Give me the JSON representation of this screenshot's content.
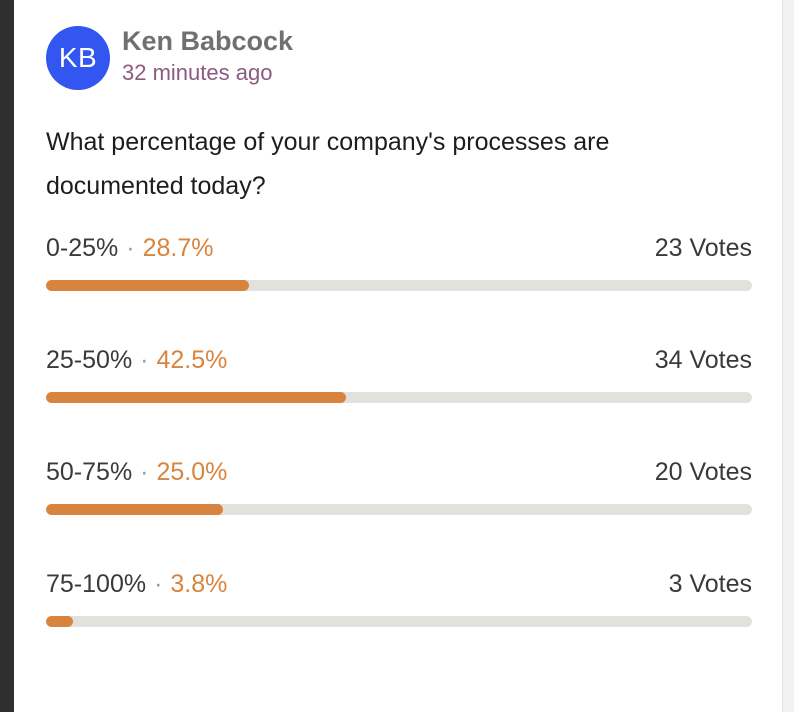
{
  "post": {
    "author": {
      "initials": "KB",
      "name": "Ken Babcock",
      "avatar_color": "#3355f0"
    },
    "timestamp": "32 minutes ago",
    "question": "What percentage of your company's processes are documented today?"
  },
  "poll": {
    "accent_color": "#d8843e",
    "separator": "·",
    "options": [
      {
        "label": "0-25%",
        "percent_text": "28.7%",
        "percent": 28.7,
        "votes": "23 Votes"
      },
      {
        "label": "25-50%",
        "percent_text": "42.5%",
        "percent": 42.5,
        "votes": "34 Votes"
      },
      {
        "label": "50-75%",
        "percent_text": "25.0%",
        "percent": 25.0,
        "votes": "20 Votes"
      },
      {
        "label": "75-100%",
        "percent_text": "3.8%",
        "percent": 3.8,
        "votes": "3 Votes"
      }
    ]
  }
}
